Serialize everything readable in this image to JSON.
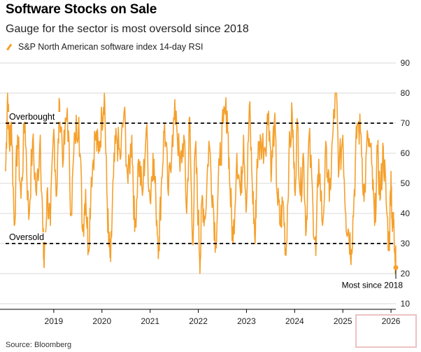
{
  "header": {
    "title": "Software Stocks on Sale",
    "subtitle": "Gauge for the sector is most oversold since 2018"
  },
  "legend": {
    "label": "S&P North American software index 14-day RSI"
  },
  "footer": {
    "source": "Source: Bloomberg"
  },
  "colors": {
    "series": "#f5a02c",
    "reference": "#000000",
    "grid": "#d9d9d9"
  },
  "chart_data": {
    "type": "line",
    "title": "Software Stocks on Sale",
    "subtitle": "Gauge for the sector is most oversold since 2018",
    "series": [
      {
        "name": "S&P North American software index 14-day RSI",
        "color": "#f5a02c"
      }
    ],
    "x_range": [
      2018.0,
      2026.1
    ],
    "ylim": [
      10,
      90
    ],
    "y_ticks": [
      10,
      20,
      30,
      40,
      50,
      60,
      70,
      80,
      90
    ],
    "x_ticks": [
      {
        "value": 2019,
        "label": "2019"
      },
      {
        "value": 2020,
        "label": "2020"
      },
      {
        "value": 2021,
        "label": "2021"
      },
      {
        "value": 2022,
        "label": "2022"
      },
      {
        "value": 2023,
        "label": "2023"
      },
      {
        "value": 2024,
        "label": "2024"
      },
      {
        "value": 2025,
        "label": "2025"
      },
      {
        "value": 2026,
        "label": "2026"
      }
    ],
    "reference_lines": [
      {
        "label": "Overbought",
        "value": 70
      },
      {
        "label": "Oversold",
        "value": 30
      }
    ],
    "key_points": [
      [
        2018.0,
        54
      ],
      [
        2018.04,
        80
      ],
      [
        2018.08,
        62
      ],
      [
        2018.12,
        72
      ],
      [
        2018.18,
        36
      ],
      [
        2018.25,
        66
      ],
      [
        2018.32,
        45
      ],
      [
        2018.4,
        72
      ],
      [
        2018.48,
        38
      ],
      [
        2018.56,
        64
      ],
      [
        2018.64,
        46
      ],
      [
        2018.72,
        66
      ],
      [
        2018.78,
        30
      ],
      [
        2018.8,
        22
      ],
      [
        2018.86,
        47
      ],
      [
        2018.93,
        36
      ],
      [
        2019.0,
        68
      ],
      [
        2019.06,
        46
      ],
      [
        2019.12,
        77
      ],
      [
        2019.2,
        58
      ],
      [
        2019.28,
        75
      ],
      [
        2019.36,
        40
      ],
      [
        2019.44,
        66
      ],
      [
        2019.52,
        72
      ],
      [
        2019.6,
        34
      ],
      [
        2019.66,
        48
      ],
      [
        2019.72,
        28
      ],
      [
        2019.78,
        52
      ],
      [
        2019.86,
        66
      ],
      [
        2019.93,
        60
      ],
      [
        2020.0,
        72
      ],
      [
        2020.05,
        81
      ],
      [
        2020.1,
        48
      ],
      [
        2020.14,
        30
      ],
      [
        2020.18,
        24
      ],
      [
        2020.24,
        52
      ],
      [
        2020.3,
        66
      ],
      [
        2020.38,
        58
      ],
      [
        2020.46,
        74
      ],
      [
        2020.54,
        50
      ],
      [
        2020.62,
        66
      ],
      [
        2020.68,
        34
      ],
      [
        2020.76,
        58
      ],
      [
        2020.84,
        46
      ],
      [
        2020.92,
        68
      ],
      [
        2021.0,
        44
      ],
      [
        2021.06,
        60
      ],
      [
        2021.12,
        44
      ],
      [
        2021.18,
        29
      ],
      [
        2021.24,
        52
      ],
      [
        2021.3,
        70
      ],
      [
        2021.38,
        46
      ],
      [
        2021.46,
        66
      ],
      [
        2021.54,
        74
      ],
      [
        2021.62,
        54
      ],
      [
        2021.7,
        66
      ],
      [
        2021.76,
        40
      ],
      [
        2021.82,
        72
      ],
      [
        2021.88,
        30
      ],
      [
        2021.94,
        62
      ],
      [
        2022.0,
        38
      ],
      [
        2022.04,
        24
      ],
      [
        2022.08,
        46
      ],
      [
        2022.14,
        38
      ],
      [
        2022.22,
        64
      ],
      [
        2022.3,
        46
      ],
      [
        2022.36,
        30
      ],
      [
        2022.44,
        56
      ],
      [
        2022.52,
        70
      ],
      [
        2022.6,
        74
      ],
      [
        2022.66,
        48
      ],
      [
        2022.72,
        30
      ],
      [
        2022.8,
        60
      ],
      [
        2022.88,
        46
      ],
      [
        2022.94,
        66
      ],
      [
        2023.0,
        42
      ],
      [
        2023.06,
        76
      ],
      [
        2023.12,
        50
      ],
      [
        2023.18,
        30
      ],
      [
        2023.22,
        58
      ],
      [
        2023.3,
        64
      ],
      [
        2023.38,
        62
      ],
      [
        2023.46,
        74
      ],
      [
        2023.52,
        54
      ],
      [
        2023.58,
        71
      ],
      [
        2023.64,
        46
      ],
      [
        2023.7,
        36
      ],
      [
        2023.76,
        44
      ],
      [
        2023.82,
        26
      ],
      [
        2023.88,
        58
      ],
      [
        2023.95,
        73
      ],
      [
        2024.0,
        48
      ],
      [
        2024.06,
        70
      ],
      [
        2024.12,
        46
      ],
      [
        2024.18,
        60
      ],
      [
        2024.24,
        34
      ],
      [
        2024.3,
        66
      ],
      [
        2024.38,
        42
      ],
      [
        2024.44,
        26
      ],
      [
        2024.5,
        58
      ],
      [
        2024.58,
        36
      ],
      [
        2024.66,
        62
      ],
      [
        2024.72,
        44
      ],
      [
        2024.8,
        68
      ],
      [
        2024.86,
        81
      ],
      [
        2024.92,
        54
      ],
      [
        2025.0,
        66
      ],
      [
        2025.06,
        40
      ],
      [
        2025.12,
        34
      ],
      [
        2025.18,
        28
      ],
      [
        2025.24,
        48
      ],
      [
        2025.3,
        70
      ],
      [
        2025.38,
        66
      ],
      [
        2025.44,
        44
      ],
      [
        2025.52,
        66
      ],
      [
        2025.6,
        56
      ],
      [
        2025.66,
        36
      ],
      [
        2025.72,
        60
      ],
      [
        2025.78,
        45
      ],
      [
        2025.84,
        62
      ],
      [
        2025.9,
        44
      ],
      [
        2025.96,
        28
      ],
      [
        2026.0,
        54
      ],
      [
        2026.03,
        34
      ],
      [
        2026.06,
        38
      ],
      [
        2026.08,
        28
      ],
      [
        2026.1,
        22
      ]
    ],
    "annotation": {
      "label": "Most since 2018",
      "x": 2026.1,
      "y": 22
    }
  }
}
